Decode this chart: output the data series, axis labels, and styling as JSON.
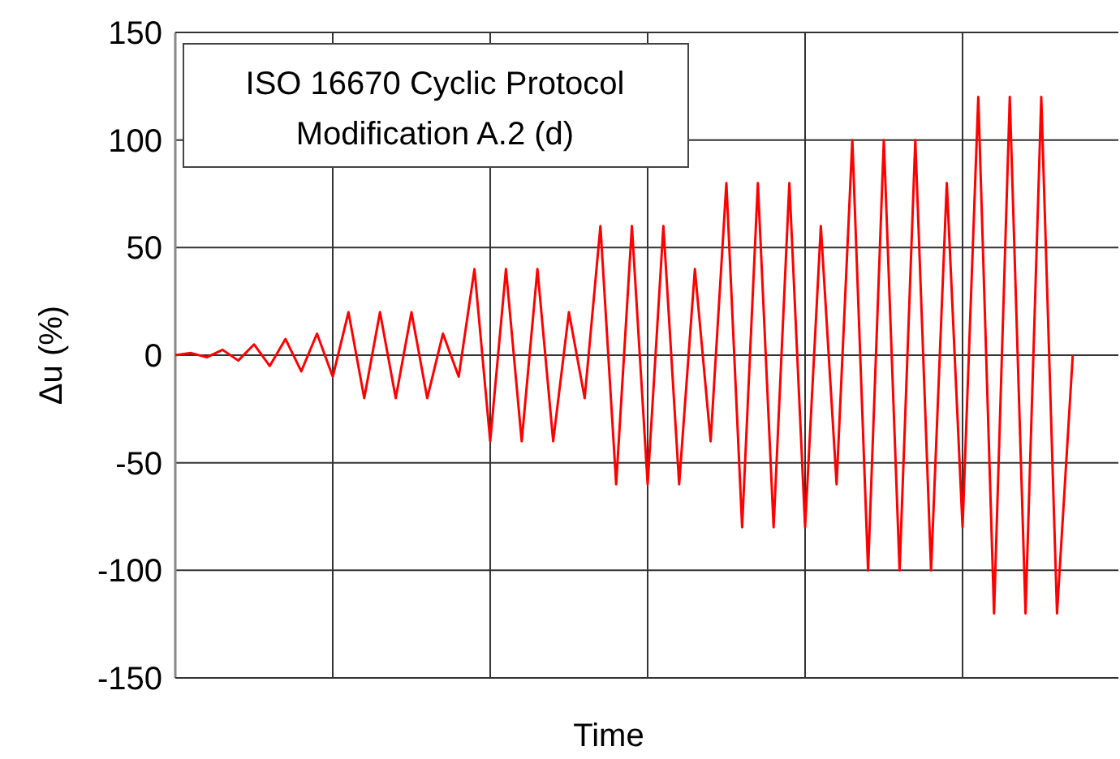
{
  "chart_data": {
    "type": "line",
    "title": "ISO 16670 Cyclic Protocol\nModification A.2 (d)",
    "xlabel": "Time",
    "ylabel": "Δu (%)",
    "categories": [
      null,
      null,
      null,
      null,
      null,
      null,
      null,
      null,
      null,
      null,
      null,
      null,
      null,
      null,
      null,
      null,
      null,
      null,
      null,
      null,
      null,
      null,
      null,
      null,
      null,
      null,
      null,
      null,
      null,
      null,
      null,
      null,
      null,
      null,
      null,
      null,
      null,
      null,
      null,
      null,
      null,
      null,
      null,
      null,
      null,
      null,
      null,
      null,
      null,
      null,
      null,
      null,
      null,
      null,
      null,
      null,
      null,
      null
    ],
    "series": [
      {
        "color": "#ff0000",
        "values": [
          0,
          1,
          -1,
          2.5,
          -2.5,
          5,
          -5,
          7.5,
          -7.5,
          10,
          -10,
          20,
          -20,
          20,
          -20,
          20,
          -20,
          10,
          -10,
          40,
          -40,
          40,
          -40,
          40,
          -40,
          20,
          -20,
          60,
          -60,
          60,
          -60,
          60,
          -60,
          40,
          -40,
          80,
          -80,
          80,
          -80,
          80,
          -80,
          60,
          -60,
          100,
          -100,
          100,
          -100,
          100,
          -100,
          80,
          -80,
          120,
          -120,
          120,
          -120,
          120,
          -120,
          0
        ]
      }
    ],
    "ylim": [
      -150,
      150
    ],
    "yticks": [
      -150,
      -100,
      -50,
      0,
      50,
      100,
      150
    ],
    "grid": true,
    "marker": "none",
    "line_style": "solid"
  }
}
